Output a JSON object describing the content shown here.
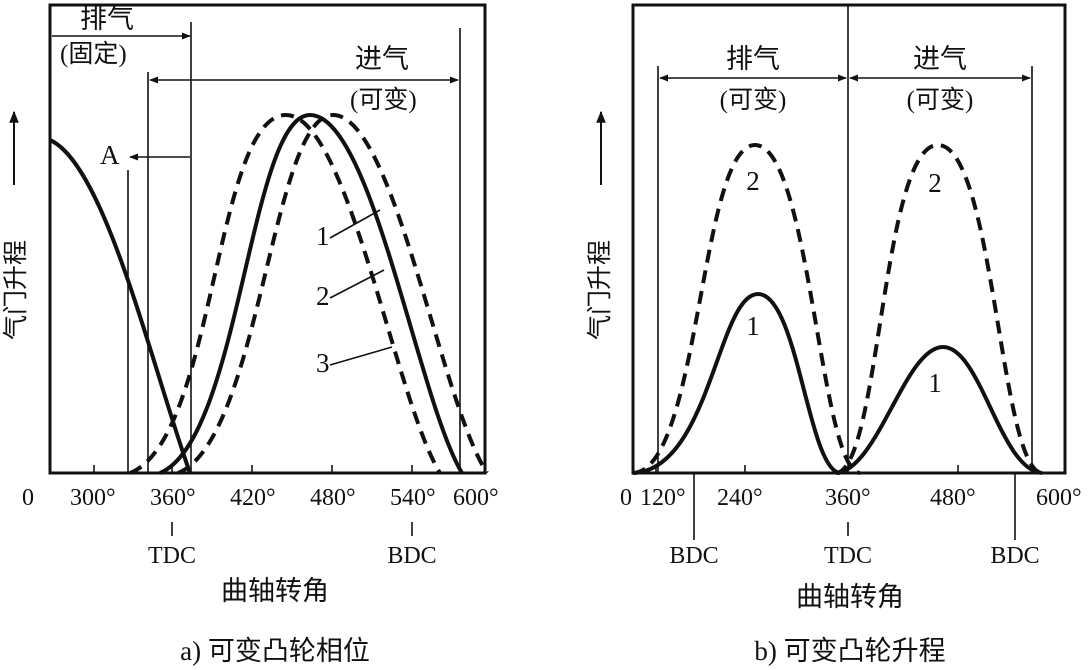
{
  "panel_a": {
    "caption": "a) 可变凸轮相位",
    "ylabel": "气门升程",
    "xlabel": "曲轴转角",
    "exhaust_label": "排气",
    "exhaust_note": "(固定)",
    "intake_label": "进气",
    "intake_note": "(可变)",
    "point_label": "A",
    "curve_labels": [
      "1",
      "2",
      "3"
    ],
    "ticks": [
      "0",
      "300°",
      "360°",
      "420°",
      "480°",
      "540°",
      "600°"
    ],
    "tdc": "TDC",
    "bdc": "BDC"
  },
  "panel_b": {
    "caption": "b) 可变凸轮升程",
    "ylabel": "气门升程",
    "xlabel": "曲轴转角",
    "exhaust_label": "排气",
    "exhaust_note": "(可变)",
    "intake_label": "进气",
    "intake_note": "(可变)",
    "curve_labels_exhaust": [
      "2",
      "1"
    ],
    "curve_labels_intake": [
      "2",
      "1"
    ],
    "ticks": [
      "0",
      "120°",
      "240°",
      "360°",
      "480°",
      "600°"
    ],
    "bdc_left": "BDC",
    "tdc": "TDC",
    "bdc_right": "BDC"
  }
}
